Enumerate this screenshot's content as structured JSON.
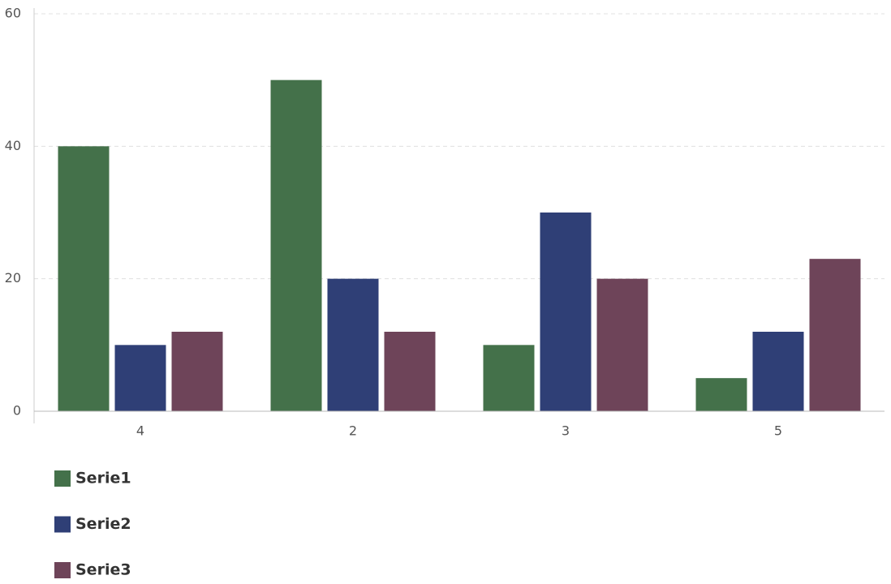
{
  "chart_data": {
    "type": "bar",
    "categories": [
      "4",
      "2",
      "3",
      "5"
    ],
    "series": [
      {
        "name": "Serie1",
        "color": "#44714a",
        "values": [
          40,
          50,
          10,
          5
        ]
      },
      {
        "name": "Serie2",
        "color": "#2f3f76",
        "values": [
          10,
          20,
          30,
          12
        ]
      },
      {
        "name": "Serie3",
        "color": "#6e4459",
        "values": [
          12,
          12,
          20,
          23
        ]
      }
    ],
    "ylim": [
      0,
      60
    ],
    "yticks": [
      0,
      20,
      40,
      60
    ],
    "grid": true,
    "legend": "bottom"
  }
}
